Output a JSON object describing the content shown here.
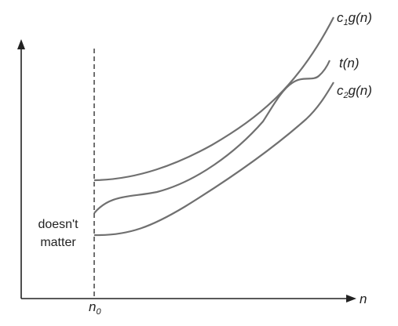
{
  "chart_data": {
    "type": "line",
    "xlabel": "n",
    "ylabel": "",
    "x_tick": {
      "main": "n",
      "subscript": "0"
    },
    "annotation": [
      "doesn't",
      "matter"
    ],
    "series": [
      {
        "name": "c1g(n)",
        "label_main": "c",
        "label_sub": "1",
        "label_rest": "g(n)",
        "color": "#707070"
      },
      {
        "name": "t(n)",
        "label_main": "t(n)",
        "label_sub": "",
        "label_rest": "",
        "color": "#707070"
      },
      {
        "name": "c2g(n)",
        "label_main": "c",
        "label_sub": "2",
        "label_rest": "g(n)",
        "color": "#707070"
      }
    ],
    "threshold_line": {
      "style": "dashed",
      "color": "#222222"
    },
    "axes_color": "#222222",
    "grid": false,
    "legend": "none"
  }
}
